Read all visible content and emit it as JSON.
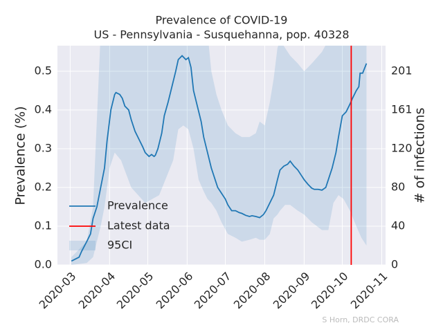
{
  "chart_data": {
    "type": "line",
    "title": "Prevalence of COVID-19",
    "subtitle": "US - Pennsylvania - Susquehanna, pop. 40328",
    "y_label": "Prevalence (%)",
    "y2_label": "# of infections",
    "credit": "S Horn, DRDC CORA",
    "x": [
      1,
      7,
      9,
      13,
      16,
      18,
      21,
      24,
      27,
      29,
      32,
      35,
      36,
      39,
      41,
      43,
      46,
      48,
      51,
      54,
      57,
      59,
      62,
      64,
      66,
      67,
      69,
      72,
      74,
      77,
      80,
      83,
      85,
      88,
      91,
      93,
      95,
      97,
      100,
      103,
      105,
      108,
      111,
      114,
      116,
      119,
      122,
      124,
      127,
      130,
      133,
      135,
      138,
      141,
      143,
      146,
      149,
      152,
      154,
      157,
      160,
      163,
      165,
      168,
      171,
      173,
      176,
      179,
      182,
      184,
      187,
      190,
      192,
      195,
      198,
      201,
      203,
      206,
      209,
      211,
      214,
      217,
      220,
      222,
      225,
      227,
      228,
      230,
      233
    ],
    "series": [
      {
        "name": "Prevalence",
        "color": "#1f77b4",
        "values": [
          0.01,
          0.02,
          0.035,
          0.06,
          0.08,
          0.12,
          0.15,
          0.2,
          0.25,
          0.32,
          0.4,
          0.44,
          0.445,
          0.44,
          0.43,
          0.41,
          0.4,
          0.375,
          0.345,
          0.325,
          0.305,
          0.29,
          0.28,
          0.285,
          0.28,
          0.283,
          0.3,
          0.34,
          0.385,
          0.42,
          0.46,
          0.5,
          0.53,
          0.54,
          0.53,
          0.535,
          0.51,
          0.45,
          0.41,
          0.37,
          0.33,
          0.29,
          0.25,
          0.22,
          0.2,
          0.185,
          0.17,
          0.155,
          0.14,
          0.14,
          0.135,
          0.133,
          0.128,
          0.125,
          0.127,
          0.125,
          0.122,
          0.13,
          0.14,
          0.16,
          0.18,
          0.22,
          0.245,
          0.255,
          0.26,
          0.268,
          0.255,
          0.245,
          0.23,
          0.22,
          0.208,
          0.198,
          0.195,
          0.195,
          0.193,
          0.2,
          0.22,
          0.25,
          0.29,
          0.33,
          0.385,
          0.395,
          0.415,
          0.43,
          0.45,
          0.46,
          0.495,
          0.495,
          0.52
        ]
      }
    ],
    "band": {
      "name": "95CI",
      "color": "#1f77b4",
      "x": [
        1,
        13,
        18,
        24,
        27,
        31,
        35,
        40,
        48,
        59,
        70,
        81,
        85,
        89,
        93,
        97,
        101,
        105,
        108,
        111,
        115,
        119,
        124,
        130,
        135,
        141,
        146,
        149,
        153,
        157,
        160,
        163,
        165,
        169,
        173,
        179,
        184,
        190,
        198,
        203,
        207,
        211,
        215,
        220,
        225,
        229,
        233
      ],
      "lower": [
        0,
        0.005,
        0.02,
        0.1,
        0.15,
        0.25,
        0.29,
        0.27,
        0.2,
        0.16,
        0.18,
        0.27,
        0.35,
        0.36,
        0.35,
        0.3,
        0.22,
        0.19,
        0.17,
        0.16,
        0.14,
        0.11,
        0.08,
        0.07,
        0.06,
        0.065,
        0.07,
        0.065,
        0.065,
        0.08,
        0.12,
        0.13,
        0.14,
        0.155,
        0.155,
        0.14,
        0.13,
        0.11,
        0.09,
        0.09,
        0.16,
        0.18,
        0.17,
        0.14,
        0.1,
        0.07,
        0.05
      ],
      "upper": [
        0.02,
        0.06,
        0.15,
        0.6,
        0.65,
        0.7,
        0.7,
        0.7,
        0.7,
        0.7,
        0.7,
        0.7,
        0.7,
        0.7,
        0.7,
        0.7,
        0.7,
        0.65,
        0.6,
        0.5,
        0.44,
        0.4,
        0.36,
        0.34,
        0.33,
        0.33,
        0.34,
        0.37,
        0.36,
        0.42,
        0.48,
        0.56,
        0.58,
        0.56,
        0.54,
        0.52,
        0.5,
        0.52,
        0.55,
        0.58,
        0.6,
        0.62,
        0.62,
        0.62,
        0.62,
        0.62,
        0.62
      ]
    },
    "vline": {
      "name": "Latest data",
      "color": "#ff0000",
      "x": 221
    },
    "xlim": [
      -10,
      248
    ],
    "xticks": [
      {
        "value": 0,
        "label": "2020-03"
      },
      {
        "value": 31,
        "label": "2020-04"
      },
      {
        "value": 61,
        "label": "2020-05"
      },
      {
        "value": 92,
        "label": "2020-06"
      },
      {
        "value": 122,
        "label": "2020-07"
      },
      {
        "value": 153,
        "label": "2020-08"
      },
      {
        "value": 184,
        "label": "2020-09"
      },
      {
        "value": 214,
        "label": "2020-10"
      },
      {
        "value": 245,
        "label": "2020-11"
      }
    ],
    "ylim": [
      0,
      0.566
    ],
    "yticks": [
      {
        "value": 0,
        "label": "0.0"
      },
      0.1,
      0.2,
      0.3,
      0.4,
      0.5
    ],
    "y2lim": [
      0,
      228.3
    ],
    "y2ticks": [
      0,
      {
        "value": 40.328,
        "label": "40"
      },
      {
        "value": 80.656,
        "label": "80"
      },
      {
        "value": 120.984,
        "label": "120"
      },
      {
        "value": 161.312,
        "label": "161"
      },
      {
        "value": 201.64,
        "label": "201"
      }
    ],
    "grid": true,
    "legend": "lower left"
  }
}
